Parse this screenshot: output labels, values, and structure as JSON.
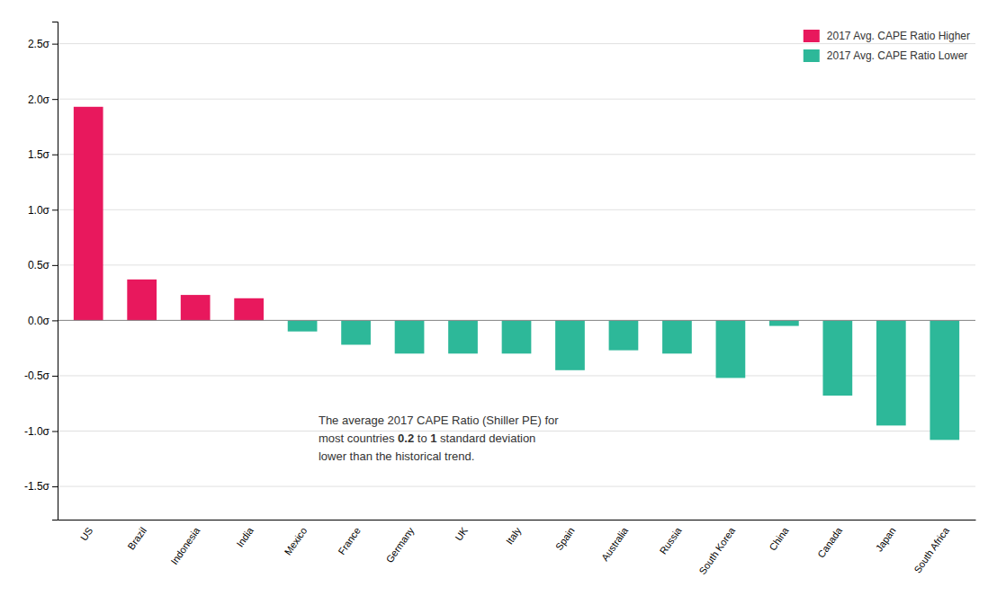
{
  "chart_data": {
    "type": "bar",
    "categories": [
      "US",
      "Brazil",
      "Indonesia",
      "India",
      "Mexico",
      "France",
      "Germany",
      "UK",
      "Italy",
      "Spain",
      "Australia",
      "Russia",
      "South Korea",
      "China",
      "Canada",
      "Japan",
      "South Africa"
    ],
    "values": [
      1.93,
      0.37,
      0.23,
      0.2,
      -0.1,
      -0.22,
      -0.3,
      -0.3,
      -0.3,
      -0.45,
      -0.27,
      -0.3,
      -0.52,
      -0.05,
      -0.68,
      -0.95,
      -1.08
    ],
    "colors": [
      "#e8185d",
      "#e8185d",
      "#e8185d",
      "#e8185d",
      "#2db899",
      "#2db899",
      "#2db899",
      "#2db899",
      "#2db899",
      "#2db899",
      "#2db899",
      "#2db899",
      "#2db899",
      "#2db899",
      "#2db899",
      "#2db899",
      "#2db899"
    ],
    "ylim": [
      -1.8,
      2.7
    ],
    "yticks": [
      {
        "value": -1.5,
        "label": "-1.5σ"
      },
      {
        "value": -1.0,
        "label": "-1.0σ"
      },
      {
        "value": -0.5,
        "label": "-0.5σ"
      },
      {
        "value": 0.0,
        "label": "0.0σ"
      },
      {
        "value": 0.5,
        "label": "0.5σ"
      },
      {
        "value": 1.0,
        "label": "1.0σ"
      },
      {
        "value": 1.5,
        "label": "1.5σ"
      },
      {
        "value": 2.0,
        "label": "2.0σ"
      },
      {
        "value": 2.5,
        "label": "2.5σ"
      }
    ],
    "grid": true,
    "legend": "upper right",
    "legend_entries": [
      {
        "name": "2017 Avg. CAPE Ratio Higher",
        "color": "#e8185d"
      },
      {
        "name": "2017 Avg. CAPE Ratio Lower",
        "color": "#2db899"
      }
    ],
    "annotations": [
      "The average 2017 CAPE Ratio (Shiller PE) for",
      [
        "most countries ",
        "0.2",
        " to ",
        "1",
        " standard deviation"
      ],
      "lower than the historical trend."
    ]
  }
}
